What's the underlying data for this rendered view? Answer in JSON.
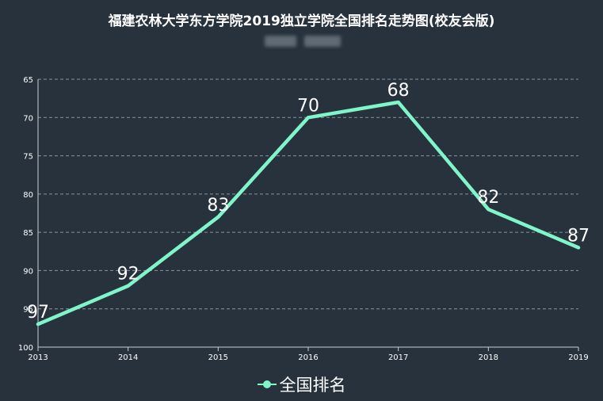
{
  "chart_data": {
    "type": "line",
    "title": "福建农林大学东方学院2019独立学院全国排名走势图(校友会版)",
    "x": [
      "2013",
      "2014",
      "2015",
      "2016",
      "2017",
      "2018",
      "2019"
    ],
    "series": [
      {
        "name": "全国排名",
        "values": [
          97,
          92,
          83,
          70,
          68,
          82,
          87
        ]
      }
    ],
    "y_ticks": [
      "65",
      "70",
      "75",
      "80",
      "85",
      "90",
      "95",
      "100"
    ],
    "ylim": [
      65,
      100
    ],
    "y_inverted": true,
    "grid": true,
    "legend_position": "bottom",
    "line_color": "#7ff5c9"
  }
}
